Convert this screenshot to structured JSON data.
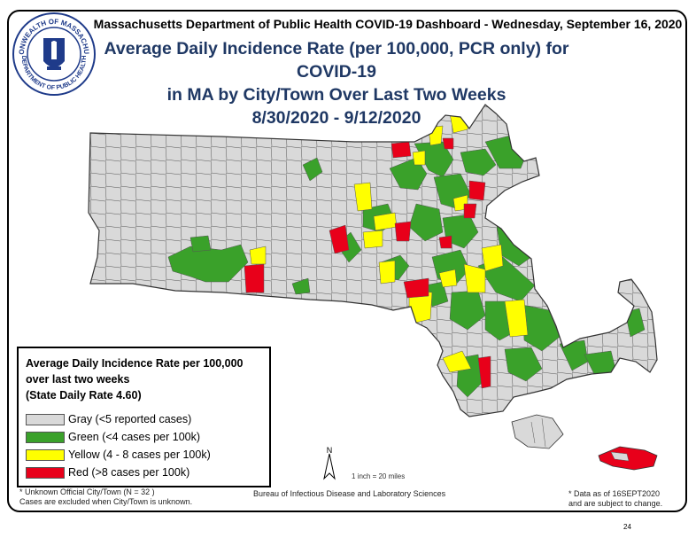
{
  "header": {
    "dashboard_line": "Massachusetts Department of Public Health COVID-19 Dashboard - Wednesday, September 16, 2020",
    "title_line1": "Average Daily Incidence Rate (per 100,000, PCR only) for COVID-19",
    "title_line2": "in MA by City/Town Over Last Two Weeks",
    "title_line3": "8/30/2020 - 9/12/2020"
  },
  "seal": {
    "top_text": "COMMONWEALTH OF MASSACHUSETTS",
    "bottom_text": "DEPARTMENT OF PUBLIC HEALTH"
  },
  "legend": {
    "title_line1": "Average Daily Incidence Rate per 100,000",
    "title_line2": "over last two weeks",
    "title_line3": "(State Daily Rate 4.60)",
    "items": [
      {
        "label": "Gray (<5 reported cases)",
        "color": "#d9d9d9"
      },
      {
        "label": "Green (<4 cases per 100k)",
        "color": "#3aa12a"
      },
      {
        "label": "Yellow (4 - 8 cases per 100k)",
        "color": "#ffff00"
      },
      {
        "label": "Red (>8 cases per 100k)",
        "color": "#e8001a"
      }
    ]
  },
  "map": {
    "north_label": "N",
    "scale_text": "1 inch = 20 miles"
  },
  "footer": {
    "unknown_line1": "* Unknown Official City/Town (N = 32 )",
    "unknown_line2": "Cases are excluded when City/Town is unknown.",
    "bureau": "Bureau of Infectious Disease and Laboratory Sciences",
    "data_asof_line1": "* Data as of 16SEPT2020",
    "data_asof_line2": "and are subject to change.",
    "page_number": "24"
  }
}
